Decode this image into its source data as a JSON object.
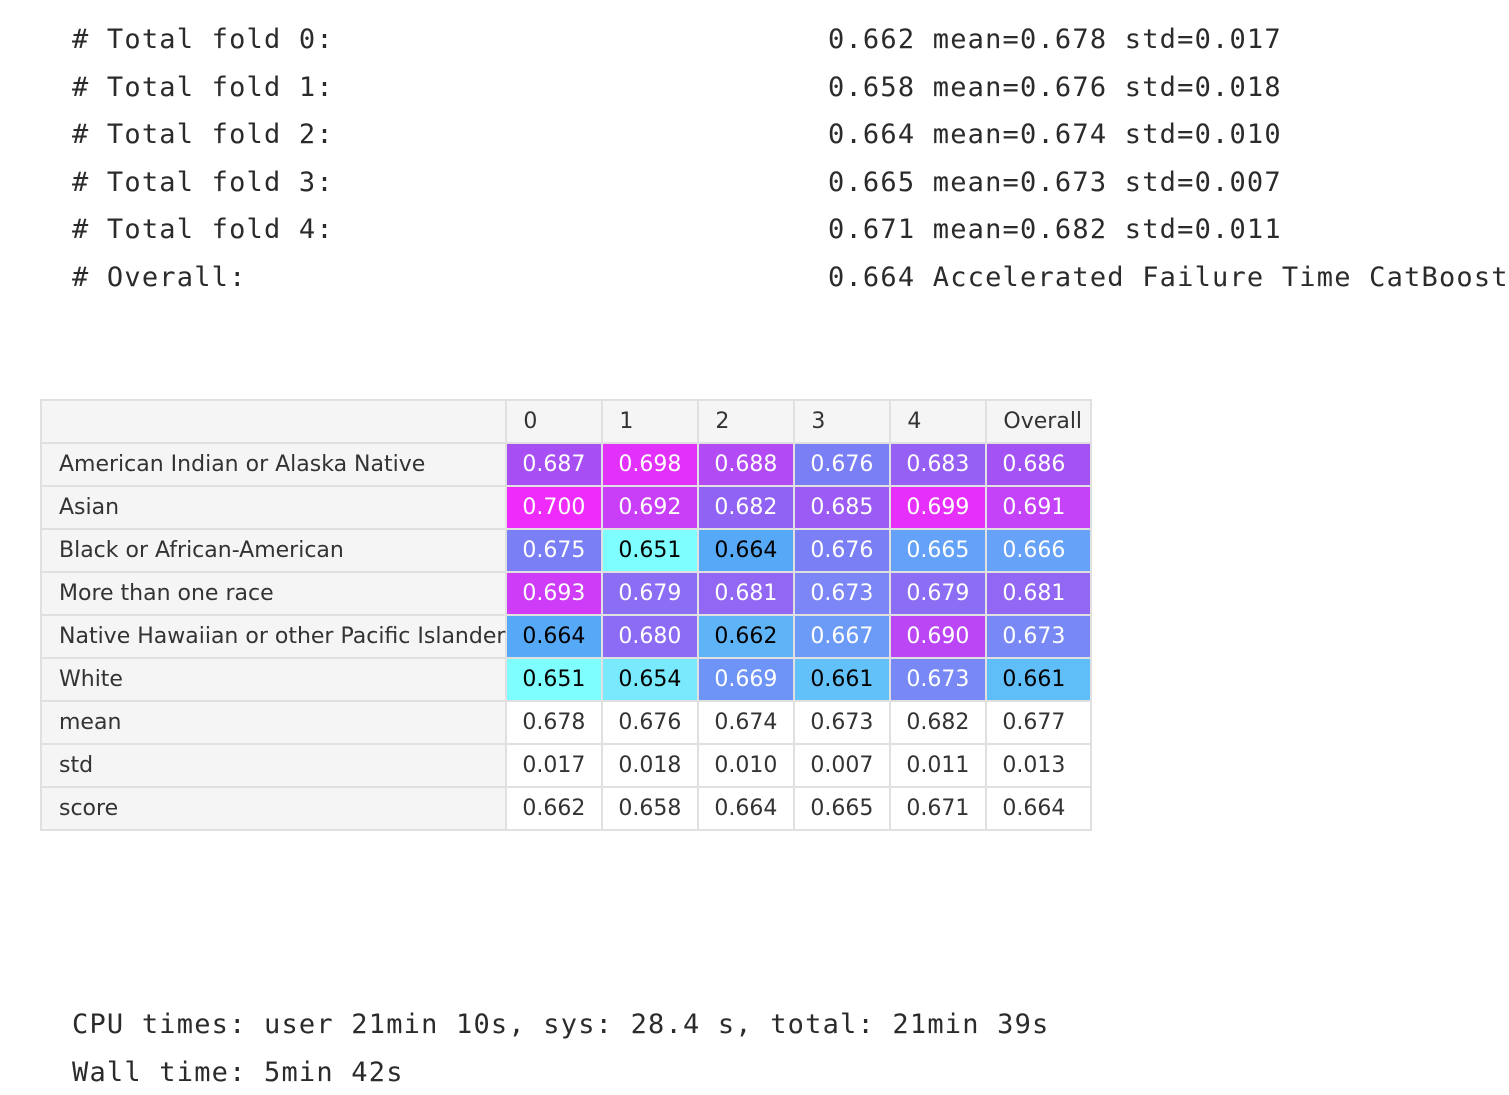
{
  "log_lines": [
    {
      "label": "# Total fold 0:",
      "value": "0.662 mean=0.678 std=0.017"
    },
    {
      "label": "# Total fold 1:",
      "value": "0.658 mean=0.676 std=0.018"
    },
    {
      "label": "# Total fold 2:",
      "value": "0.664 mean=0.674 std=0.010"
    },
    {
      "label": "# Total fold 3:",
      "value": "0.665 mean=0.673 std=0.007"
    },
    {
      "label": "# Total fold 4:",
      "value": "0.671 mean=0.682 std=0.011"
    },
    {
      "label": "# Overall:",
      "value": "0.664 Accelerated Failure Time CatBoost"
    }
  ],
  "table": {
    "columns": [
      "0",
      "1",
      "2",
      "3",
      "4",
      "Overall"
    ],
    "rows": [
      {
        "label": "American Indian or Alaska Native",
        "values": [
          "0.687",
          "0.698",
          "0.688",
          "0.676",
          "0.683",
          "0.686"
        ],
        "colors": [
          "#a84ff4",
          "#e231fa",
          "#b34bf5",
          "#7b7ff5",
          "#9660f4",
          "#a353f4"
        ],
        "text_colors": [
          "#ffffff",
          "#ffffff",
          "#ffffff",
          "#ffffff",
          "#ffffff",
          "#ffffff"
        ]
      },
      {
        "label": "Asian",
        "values": [
          "0.700",
          "0.692",
          "0.682",
          "0.685",
          "0.699",
          "0.691"
        ],
        "colors": [
          "#ee2bfa",
          "#c93ff8",
          "#9163f4",
          "#9b5bf4",
          "#e62ffa",
          "#c442f7"
        ],
        "text_colors": [
          "#ffffff",
          "#ffffff",
          "#ffffff",
          "#ffffff",
          "#ffffff",
          "#ffffff"
        ]
      },
      {
        "label": "Black or African-American",
        "values": [
          "0.675",
          "0.651",
          "0.664",
          "0.676",
          "0.665",
          "0.666"
        ],
        "colors": [
          "#7b7ff5",
          "#7efefe",
          "#56a9f7",
          "#7b7ff5",
          "#63a2f8",
          "#66a2f8"
        ],
        "text_colors": [
          "#ffffff",
          "#000000",
          "#000000",
          "#ffffff",
          "#ffffff",
          "#ffffff"
        ]
      },
      {
        "label": "More than one race",
        "values": [
          "0.693",
          "0.679",
          "0.681",
          "0.673",
          "0.679",
          "0.681"
        ],
        "colors": [
          "#cf3cf8",
          "#8b6ef4",
          "#9167f4",
          "#7c86f6",
          "#8b6ef4",
          "#9167f4"
        ],
        "text_colors": [
          "#ffffff",
          "#ffffff",
          "#ffffff",
          "#ffffff",
          "#ffffff",
          "#ffffff"
        ]
      },
      {
        "label": "Native Hawaiian or other Pacific Islander",
        "values": [
          "0.664",
          "0.680",
          "0.662",
          "0.667",
          "0.690",
          "0.673"
        ],
        "colors": [
          "#56a9f7",
          "#8c6cf4",
          "#5fb3f7",
          "#6b9bf7",
          "#bb46f6",
          "#7889f6"
        ],
        "text_colors": [
          "#000000",
          "#ffffff",
          "#000000",
          "#ffffff",
          "#ffffff",
          "#ffffff"
        ]
      },
      {
        "label": "White",
        "values": [
          "0.651",
          "0.654",
          "0.669",
          "0.661",
          "0.673",
          "0.661"
        ],
        "colors": [
          "#7efefe",
          "#79e9fd",
          "#6d94f6",
          "#62c1f9",
          "#7889f6",
          "#5fbdf8"
        ],
        "text_colors": [
          "#000000",
          "#000000",
          "#ffffff",
          "#000000",
          "#ffffff",
          "#000000"
        ]
      },
      {
        "label": "mean",
        "values": [
          "0.678",
          "0.676",
          "0.674",
          "0.673",
          "0.682",
          "0.677"
        ]
      },
      {
        "label": "std",
        "values": [
          "0.017",
          "0.018",
          "0.010",
          "0.007",
          "0.011",
          "0.013"
        ]
      },
      {
        "label": "score",
        "values": [
          "0.662",
          "0.658",
          "0.664",
          "0.665",
          "0.671",
          "0.664"
        ]
      }
    ]
  },
  "footer": {
    "cpu_times": "CPU times: user 21min 10s, sys: 28.4 s, total: 21min 39s",
    "wall_time": "Wall time: 5min 42s"
  }
}
